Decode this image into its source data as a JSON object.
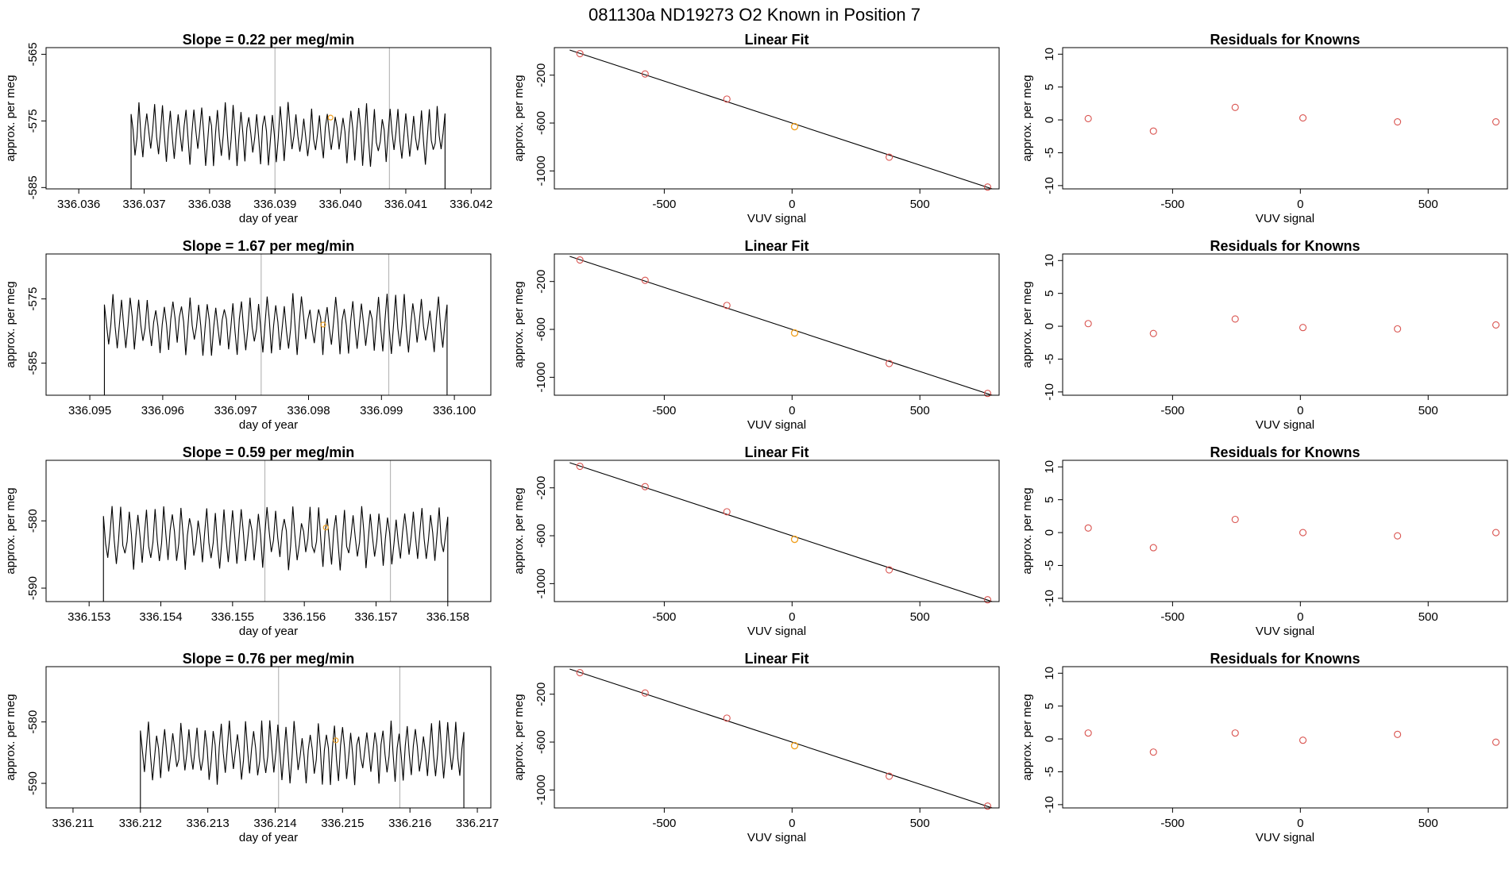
{
  "figure_title": "081130a     ND19273   O2 Known in Position  7",
  "colors": {
    "trace": "#000000",
    "frame": "#000000",
    "known_points": "#d9534f",
    "unknown_point": "#f0a020",
    "marker_lines": "#b8b8b8",
    "fit_line": "#000000"
  },
  "chart_data": [
    {
      "type": "line",
      "title": "Slope =  0.22  per meg/min",
      "xlabel": "day of year",
      "ylabel": "approx. per meg",
      "xlim": [
        336.0355,
        336.0423
      ],
      "ylim": [
        -585.2,
        -564
      ],
      "xticks": [
        336.036,
        336.037,
        336.038,
        336.039,
        336.04,
        336.041,
        336.042
      ],
      "yticks": [
        -585,
        -575,
        -565
      ],
      "x_start": 336.0368,
      "x_end": 336.0416,
      "base": -577,
      "amplitude": 3.5,
      "period_count": 40,
      "marker_lines_x": [
        336.039,
        336.04075
      ],
      "unknown_point": [
        336.03985,
        -574.5
      ]
    },
    {
      "type": "scatter",
      "title": "Linear Fit",
      "xlabel": "VUV signal",
      "ylabel": "approx. per meg",
      "xlim": [
        -930,
        810
      ],
      "ylim": [
        -1150,
        30
      ],
      "xticks": [
        -500,
        0,
        500
      ],
      "yticks": [
        -1000,
        -600,
        -200
      ],
      "known_x": [
        -830,
        -575,
        -255,
        380,
        765
      ],
      "known_y": [
        -20,
        -190,
        -400,
        -885,
        -1135
      ],
      "unknown_x": [
        10
      ],
      "unknown_y": [
        -630
      ],
      "fit": [
        [
          -870,
          10
        ],
        [
          790,
          -1155
        ]
      ]
    },
    {
      "type": "scatter",
      "title": "Residuals for Knowns",
      "xlabel": "VUV signal",
      "ylabel": "approx. per meg",
      "xlim": [
        -930,
        810
      ],
      "ylim": [
        -10.5,
        11
      ],
      "xticks": [
        -500,
        0,
        500
      ],
      "yticks": [
        -10,
        -5,
        0,
        5,
        10
      ],
      "x": [
        -830,
        -575,
        -255,
        10,
        380,
        765
      ],
      "y": [
        0.2,
        -1.7,
        1.9,
        0.3,
        -0.3,
        -0.3
      ]
    },
    {
      "type": "line",
      "title": "Slope =  1.67  per meg/min",
      "xlabel": "day of year",
      "ylabel": "approx. per meg",
      "xlim": [
        336.0944,
        336.1005
      ],
      "ylim": [
        -590,
        -568
      ],
      "xticks": [
        336.095,
        336.096,
        336.097,
        336.098,
        336.099,
        336.1
      ],
      "yticks": [
        -585,
        -575
      ],
      "x_start": 336.0952,
      "x_end": 336.0999,
      "base": -579,
      "amplitude": 3.5,
      "period_count": 40,
      "marker_lines_x": [
        336.09735,
        336.0991
      ],
      "unknown_point": [
        336.0982,
        -579
      ]
    },
    {
      "type": "scatter",
      "title": "Linear Fit",
      "xlabel": "VUV signal",
      "ylabel": "approx. per meg",
      "xlim": [
        -930,
        810
      ],
      "ylim": [
        -1150,
        30
      ],
      "xticks": [
        -500,
        0,
        500
      ],
      "yticks": [
        -1000,
        -600,
        -200
      ],
      "known_x": [
        -830,
        -575,
        -255,
        380,
        765
      ],
      "known_y": [
        -20,
        -190,
        -400,
        -885,
        -1135
      ],
      "unknown_x": [
        10
      ],
      "unknown_y": [
        -630
      ],
      "fit": [
        [
          -870,
          10
        ],
        [
          790,
          -1155
        ]
      ]
    },
    {
      "type": "scatter",
      "title": "Residuals for Knowns",
      "xlabel": "VUV signal",
      "ylabel": "approx. per meg",
      "xlim": [
        -930,
        810
      ],
      "ylim": [
        -10.5,
        11
      ],
      "xticks": [
        -500,
        0,
        500
      ],
      "yticks": [
        -10,
        -5,
        0,
        5,
        10
      ],
      "x": [
        -830,
        -575,
        -255,
        10,
        380,
        765
      ],
      "y": [
        0.4,
        -1.1,
        1.1,
        -0.2,
        -0.4,
        0.2
      ]
    },
    {
      "type": "line",
      "title": "Slope =  0.59  per meg/min",
      "xlabel": "day of year",
      "ylabel": "approx. per meg",
      "xlim": [
        336.1524,
        336.1586
      ],
      "ylim": [
        -592,
        -571
      ],
      "xticks": [
        336.153,
        336.154,
        336.155,
        336.156,
        336.157,
        336.158
      ],
      "yticks": [
        -590,
        -580
      ],
      "x_start": 336.1532,
      "x_end": 336.158,
      "base": -582.5,
      "amplitude": 3.5,
      "period_count": 40,
      "marker_lines_x": [
        336.15545,
        336.1572
      ],
      "unknown_point": [
        336.1563,
        -581
      ]
    },
    {
      "type": "scatter",
      "title": "Linear Fit",
      "xlabel": "VUV signal",
      "ylabel": "approx. per meg",
      "xlim": [
        -930,
        810
      ],
      "ylim": [
        -1150,
        30
      ],
      "xticks": [
        -500,
        0,
        500
      ],
      "yticks": [
        -1000,
        -600,
        -200
      ],
      "known_x": [
        -830,
        -575,
        -255,
        380,
        765
      ],
      "known_y": [
        -20,
        -190,
        -400,
        -885,
        -1135
      ],
      "unknown_x": [
        10
      ],
      "unknown_y": [
        -630
      ],
      "fit": [
        [
          -870,
          10
        ],
        [
          790,
          -1155
        ]
      ]
    },
    {
      "type": "scatter",
      "title": "Residuals for Knowns",
      "xlabel": "VUV signal",
      "ylabel": "approx. per meg",
      "xlim": [
        -930,
        810
      ],
      "ylim": [
        -10.5,
        11
      ],
      "xticks": [
        -500,
        0,
        500
      ],
      "yticks": [
        -10,
        -5,
        0,
        5,
        10
      ],
      "x": [
        -830,
        -575,
        -255,
        10,
        380,
        765
      ],
      "y": [
        0.7,
        -2.3,
        2.0,
        0.0,
        -0.5,
        0.0
      ]
    },
    {
      "type": "line",
      "title": "Slope =  0.76  per meg/min",
      "xlabel": "day of year",
      "ylabel": "approx. per meg",
      "xlim": [
        336.2106,
        336.2172
      ],
      "ylim": [
        -594,
        -571
      ],
      "xticks": [
        336.211,
        336.212,
        336.213,
        336.214,
        336.215,
        336.216,
        336.217
      ],
      "yticks": [
        -590,
        -580
      ],
      "x_start": 336.212,
      "x_end": 336.2168,
      "base": -585,
      "amplitude": 3.8,
      "period_count": 40,
      "marker_lines_x": [
        336.21405,
        336.21585
      ],
      "unknown_point": [
        336.2149,
        -583
      ]
    },
    {
      "type": "scatter",
      "title": "Linear Fit",
      "xlabel": "VUV signal",
      "ylabel": "approx. per meg",
      "xlim": [
        -930,
        810
      ],
      "ylim": [
        -1150,
        30
      ],
      "xticks": [
        -500,
        0,
        500
      ],
      "yticks": [
        -1000,
        -600,
        -200
      ],
      "known_x": [
        -830,
        -575,
        -255,
        380,
        765
      ],
      "known_y": [
        -20,
        -190,
        -400,
        -885,
        -1135
      ],
      "unknown_x": [
        10
      ],
      "unknown_y": [
        -630
      ],
      "fit": [
        [
          -870,
          10
        ],
        [
          790,
          -1155
        ]
      ]
    },
    {
      "type": "scatter",
      "title": "Residuals for Knowns",
      "xlabel": "VUV signal",
      "ylabel": "approx. per meg",
      "xlim": [
        -930,
        810
      ],
      "ylim": [
        -10.5,
        11
      ],
      "xticks": [
        -500,
        0,
        500
      ],
      "yticks": [
        -10,
        -5,
        0,
        5,
        10
      ],
      "x": [
        -830,
        -575,
        -255,
        10,
        380,
        765
      ],
      "y": [
        0.9,
        -2.0,
        0.9,
        -0.2,
        0.7,
        -0.5
      ]
    }
  ]
}
